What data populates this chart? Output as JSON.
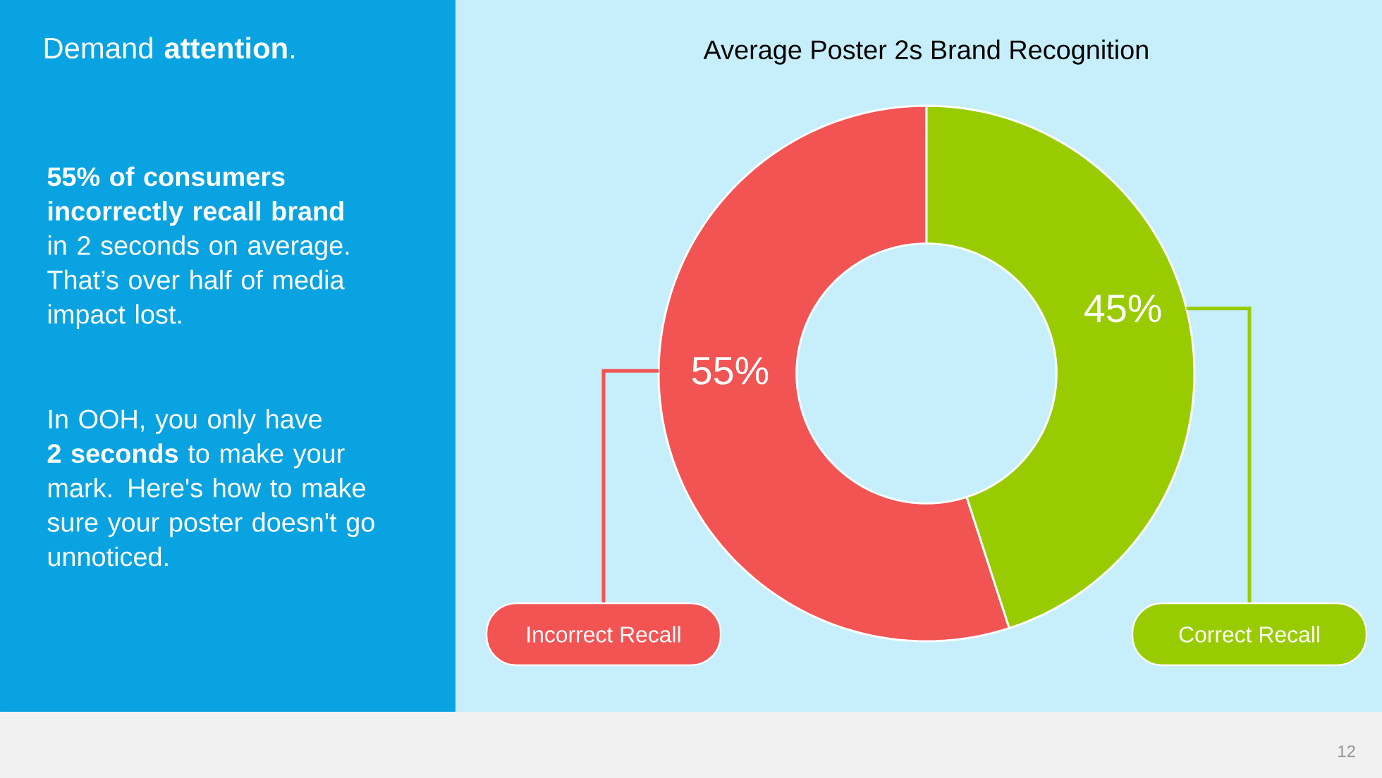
{
  "chart_data": {
    "type": "donut",
    "title": "Average Poster 2s Brand Recognition",
    "categories": [
      "Incorrect Recall",
      "Correct Recall"
    ],
    "values": [
      55,
      45
    ],
    "colors": [
      "#f25454",
      "#99cc00"
    ],
    "value_labels": [
      "55%",
      "45%"
    ],
    "legend": "bottom",
    "annotations": [
      "Demand **attention**.",
      "**55% of consumers incorrectly recall brand** in 2 seconds on average. That’s over half of media impact lost.",
      "In OOH, you only have **2 seconds** to make your mark. Here's how to make sure your poster doesn't go unnoticed.",
      "12"
    ]
  }
}
